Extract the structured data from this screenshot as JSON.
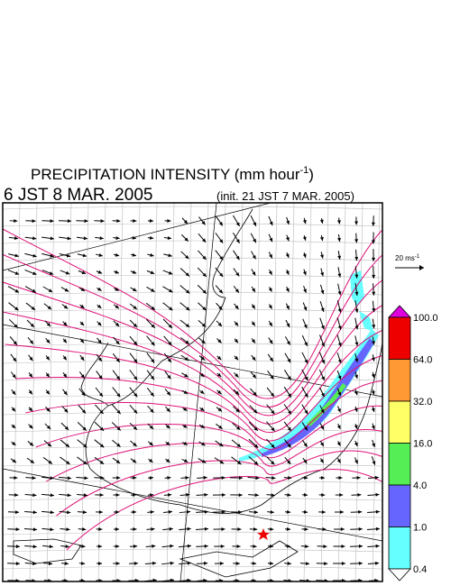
{
  "title": {
    "main": "PRECIPITATION INTENSITY (mm hour",
    "superscript": "-1",
    "end": ")"
  },
  "valid_time": "6 JST 8 MAR. 2005",
  "init_time": "(init. 21 JST 7 MAR. 2005)",
  "vector_key": {
    "label": "20 ms",
    "superscript": "-1"
  },
  "colorbar": {
    "labels": [
      "100.0",
      "64.0",
      "32.0",
      "16.0",
      "4.0",
      "1.0",
      "0.4"
    ],
    "colors": [
      "#dd00dd",
      "#ee0000",
      "#ff9933",
      "#ffff66",
      "#55ee55",
      "#6666ff",
      "#66ffff",
      "#ffffff"
    ]
  }
}
